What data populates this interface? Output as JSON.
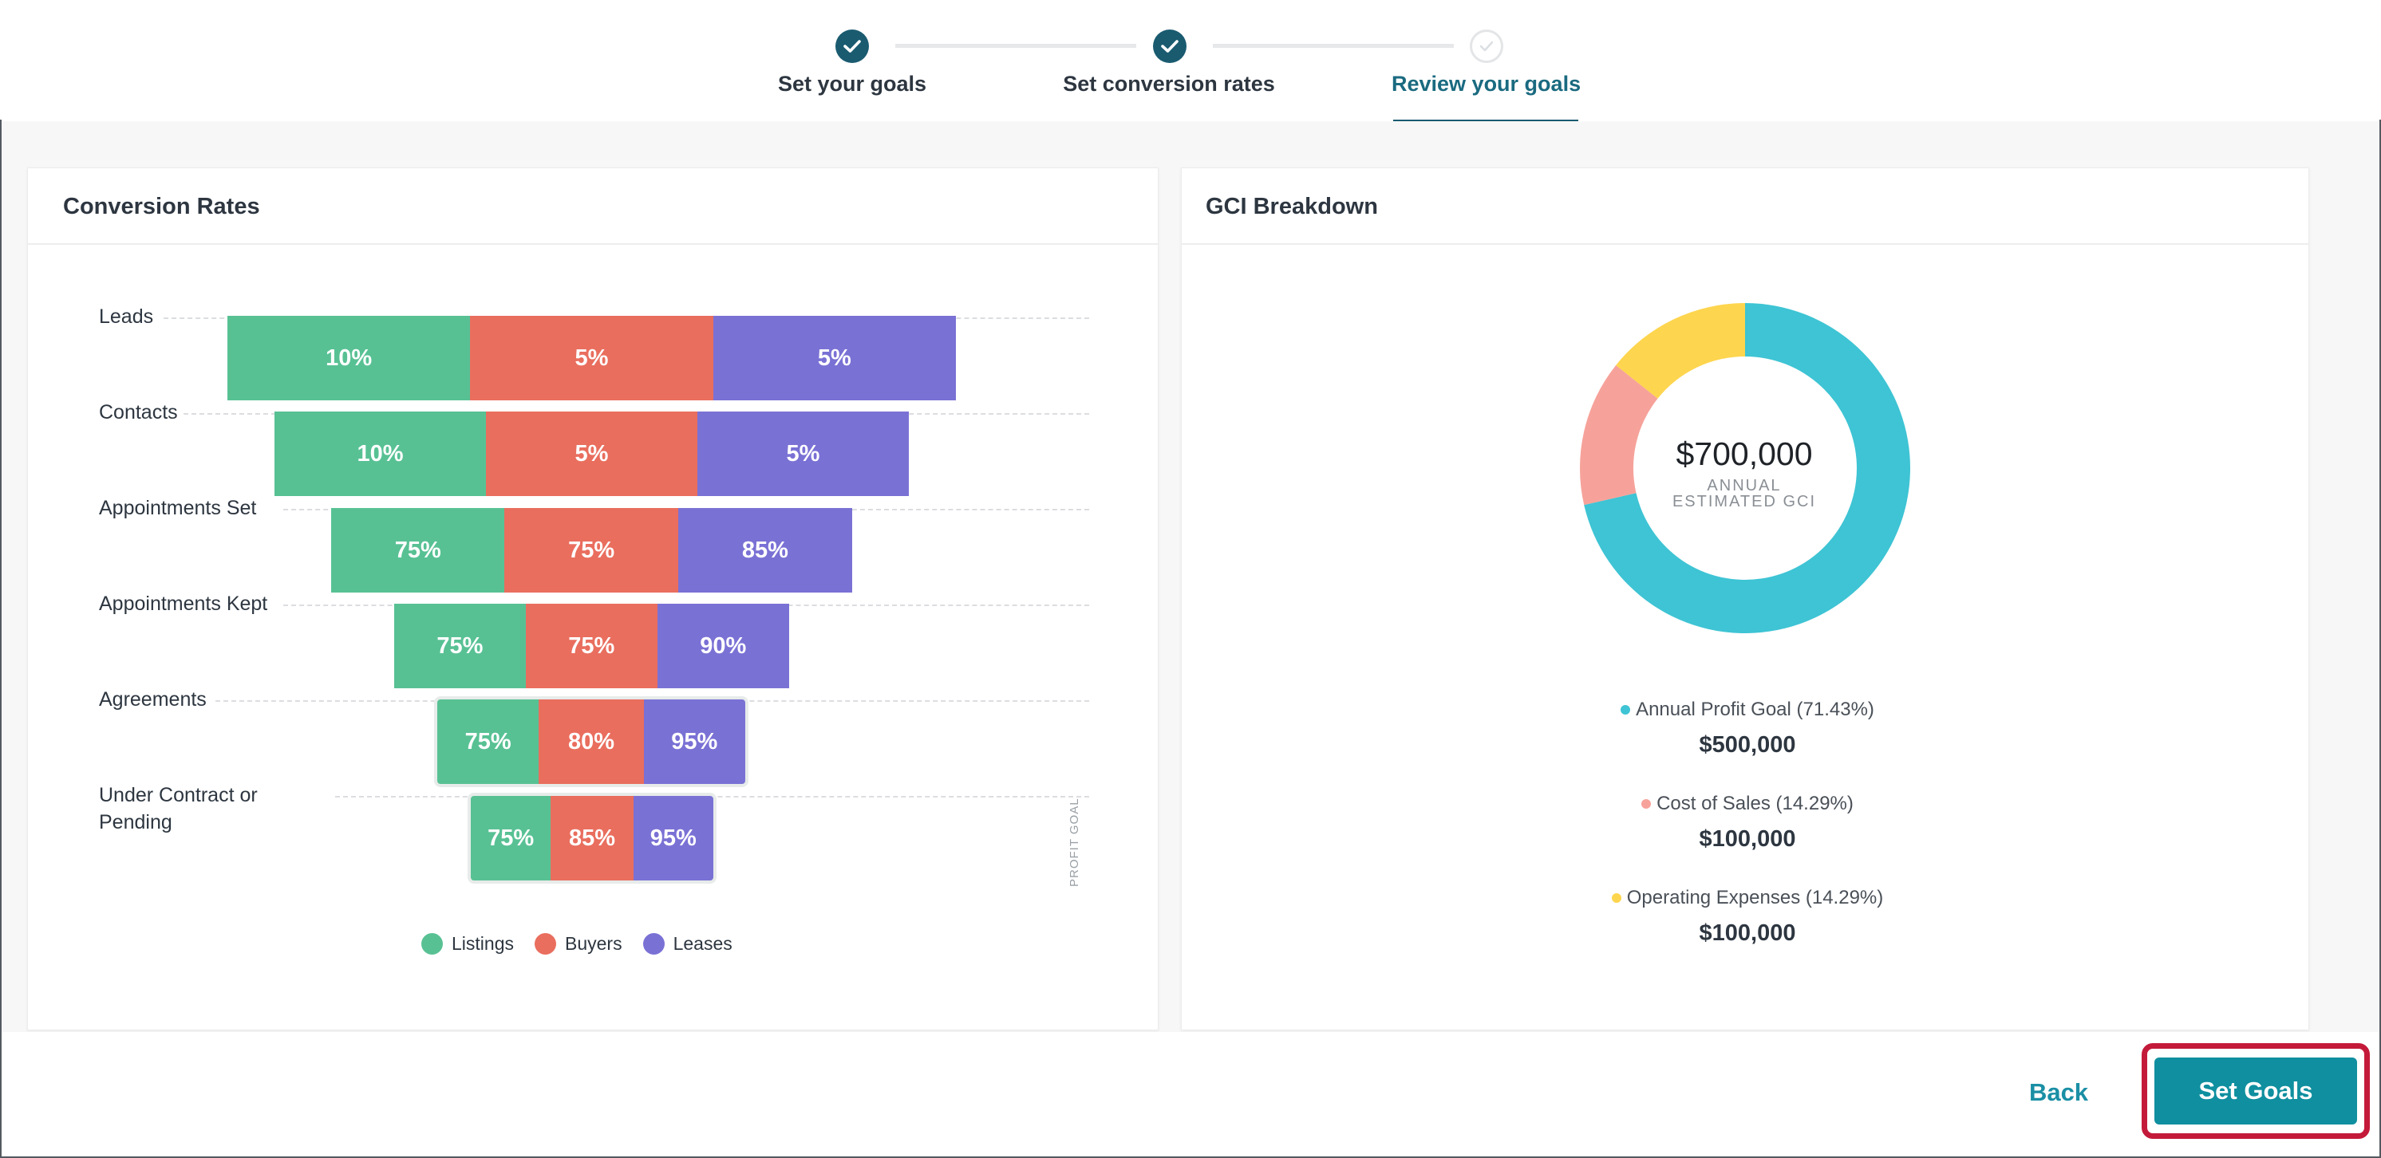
{
  "stepper": {
    "steps": [
      {
        "label": "Set your goals",
        "state": "complete"
      },
      {
        "label": "Set conversion rates",
        "state": "complete"
      },
      {
        "label": "Review your goals",
        "state": "active"
      }
    ]
  },
  "conversion": {
    "title": "Conversion Rates",
    "profit_goal_label": "PROFIT GOAL",
    "legend": [
      {
        "name": "Listings",
        "color": "#58c194"
      },
      {
        "name": "Buyers",
        "color": "#e96e5e"
      },
      {
        "name": "Leases",
        "color": "#7a71d5"
      }
    ]
  },
  "gci": {
    "title": "GCI Breakdown",
    "total": "$700,000",
    "sub1": "ANNUAL",
    "sub2": "ESTIMATED GCI",
    "items": [
      {
        "label": "Annual Profit Goal (71.43%)",
        "amount": "$500,000",
        "color": "#3ec4d4"
      },
      {
        "label": "Cost of Sales (14.29%)",
        "amount": "$100,000",
        "color": "#f6a29a"
      },
      {
        "label": "Operating Expenses (14.29%)",
        "amount": "$100,000",
        "color": "#fed54e"
      }
    ]
  },
  "chart_data": [
    {
      "type": "bar",
      "title": "Conversion Rates",
      "categories": [
        "Leads",
        "Contacts",
        "Appointments Set",
        "Appointments Kept",
        "Agreements",
        "Under Contract or Pending"
      ],
      "series": [
        {
          "name": "Listings",
          "values": [
            10,
            10,
            75,
            75,
            75,
            75
          ]
        },
        {
          "name": "Buyers",
          "values": [
            5,
            5,
            75,
            75,
            80,
            85
          ]
        },
        {
          "name": "Leases",
          "values": [
            5,
            5,
            85,
            90,
            95,
            95
          ]
        }
      ],
      "labels": {
        "Listings": [
          "10%",
          "10%",
          "75%",
          "75%",
          "75%",
          "75%"
        ],
        "Buyers": [
          "5%",
          "5%",
          "75%",
          "75%",
          "80%",
          "85%"
        ],
        "Leases": [
          "5%",
          "5%",
          "85%",
          "90%",
          "95%",
          "95%"
        ]
      },
      "annotation": "PROFIT GOAL"
    },
    {
      "type": "pie",
      "title": "GCI Breakdown",
      "categories": [
        "Annual Profit Goal",
        "Cost of Sales",
        "Operating Expenses"
      ],
      "values": [
        71.43,
        14.29,
        14.29
      ],
      "center_label": "$700,000"
    }
  ],
  "footer": {
    "back_label": "Back",
    "set_goals_label": "Set Goals"
  }
}
